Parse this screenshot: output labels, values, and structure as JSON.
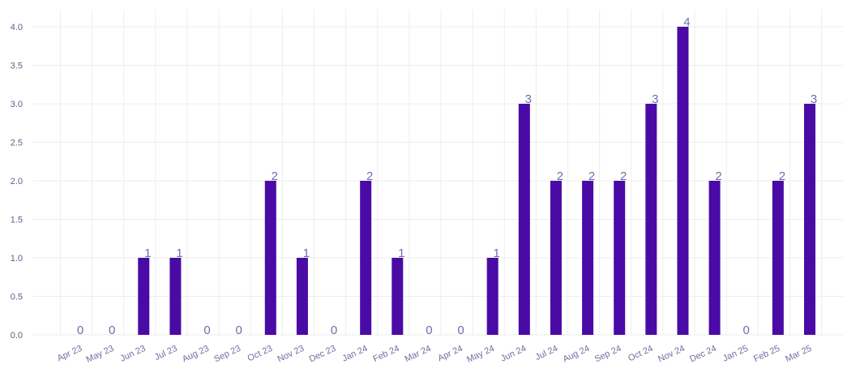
{
  "chart_data": {
    "type": "bar",
    "title": "",
    "xlabel": "",
    "ylabel": "",
    "categories": [
      "Apr 23",
      "May 23",
      "Jun 23",
      "Jul 23",
      "Aug 23",
      "Sep 23",
      "Oct 23",
      "Nov 23",
      "Dec 23",
      "Jan 24",
      "Feb 24",
      "Mar 24",
      "Apr 24",
      "May 24",
      "Jun 24",
      "Jul 24",
      "Aug 24",
      "Sep 24",
      "Oct 24",
      "Nov 24",
      "Dec 24",
      "Jan 25",
      "Feb 25",
      "Mar 25"
    ],
    "values": [
      0,
      0,
      1,
      1,
      0,
      0,
      2,
      1,
      0,
      2,
      1,
      0,
      0,
      1,
      3,
      2,
      2,
      2,
      3,
      4,
      2,
      0,
      2,
      3
    ],
    "value_labels": [
      "0",
      "0",
      "1",
      "1",
      "0",
      "0",
      "2",
      "1",
      "0",
      "2",
      "1",
      "0",
      "0",
      "1",
      "3",
      "2",
      "2",
      "2",
      "3",
      "4",
      "2",
      "0",
      "2",
      "3"
    ],
    "ylim": [
      0,
      4.2
    ],
    "y_ticks": [
      0,
      0.5,
      1,
      1.5,
      2,
      2.5,
      3,
      3.5,
      4
    ],
    "y_tick_labels": [
      "0.0",
      "0.5",
      "1.0",
      "1.5",
      "2.0",
      "2.5",
      "3.0",
      "3.5",
      "4.0"
    ],
    "grid": true,
    "legend": "none",
    "colors": {
      "bar": "#4a0aa6",
      "grid": "#eeeeee",
      "tick_text": "#5a5f8c",
      "value_text": "#6b6fa8"
    }
  }
}
